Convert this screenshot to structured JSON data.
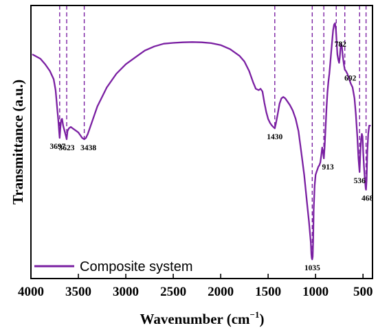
{
  "chart_data": {
    "type": "line",
    "title": "",
    "xlabel": "Wavenumber (cm",
    "xlabel_sup": "−1",
    "xlabel_close": ")",
    "ylabel": "Transmittance (a.u.)",
    "xlim": [
      4000,
      400
    ],
    "x_reversed": true,
    "ylim": [
      0,
      100
    ],
    "y_ticks_shown": false,
    "grid": false,
    "legend_position": "bottom-left",
    "x_ticks": [
      4000,
      3500,
      3000,
      2500,
      2000,
      1500,
      1000,
      500
    ],
    "x_tick_labels": [
      "4000",
      "3500",
      "3000",
      "2500",
      "2000",
      "1500",
      "1000",
      "500"
    ],
    "series": [
      {
        "name": "Composite system",
        "color": "#7a1fa2",
        "points": [
          [
            3980,
            82
          ],
          [
            3900,
            80.5
          ],
          [
            3850,
            78.5
          ],
          [
            3800,
            76
          ],
          [
            3760,
            73
          ],
          [
            3740,
            69
          ],
          [
            3725,
            63
          ],
          [
            3712,
            58
          ],
          [
            3703,
            54
          ],
          [
            3697,
            51.5
          ],
          [
            3690,
            55
          ],
          [
            3682,
            58
          ],
          [
            3672,
            58.5
          ],
          [
            3660,
            56
          ],
          [
            3645,
            54
          ],
          [
            3630,
            52
          ],
          [
            3623,
            51
          ],
          [
            3615,
            54
          ],
          [
            3600,
            55
          ],
          [
            3580,
            55.5
          ],
          [
            3560,
            55
          ],
          [
            3540,
            54.5
          ],
          [
            3520,
            54
          ],
          [
            3500,
            53.5
          ],
          [
            3480,
            52.5
          ],
          [
            3460,
            51.5
          ],
          [
            3438,
            51
          ],
          [
            3420,
            51.5
          ],
          [
            3400,
            53
          ],
          [
            3350,
            58
          ],
          [
            3300,
            63
          ],
          [
            3200,
            70
          ],
          [
            3100,
            75
          ],
          [
            3000,
            78.5
          ],
          [
            2900,
            81
          ],
          [
            2800,
            83.5
          ],
          [
            2700,
            85
          ],
          [
            2600,
            86
          ],
          [
            2500,
            86.3
          ],
          [
            2400,
            86.5
          ],
          [
            2300,
            86.6
          ],
          [
            2200,
            86.5
          ],
          [
            2100,
            86.2
          ],
          [
            2000,
            85.5
          ],
          [
            1900,
            84
          ],
          [
            1800,
            81.5
          ],
          [
            1750,
            79.5
          ],
          [
            1700,
            76
          ],
          [
            1660,
            72
          ],
          [
            1630,
            69.5
          ],
          [
            1600,
            69
          ],
          [
            1580,
            69.5
          ],
          [
            1560,
            68.5
          ],
          [
            1540,
            64.5
          ],
          [
            1520,
            61
          ],
          [
            1500,
            58.5
          ],
          [
            1480,
            57
          ],
          [
            1460,
            56
          ],
          [
            1445,
            55.5
          ],
          [
            1430,
            55
          ],
          [
            1420,
            56.5
          ],
          [
            1400,
            60
          ],
          [
            1380,
            64
          ],
          [
            1360,
            66
          ],
          [
            1340,
            66.5
          ],
          [
            1320,
            66
          ],
          [
            1300,
            65
          ],
          [
            1270,
            63.5
          ],
          [
            1240,
            61.5
          ],
          [
            1210,
            58.5
          ],
          [
            1180,
            54
          ],
          [
            1150,
            46
          ],
          [
            1120,
            38
          ],
          [
            1100,
            31
          ],
          [
            1085,
            26
          ],
          [
            1070,
            21
          ],
          [
            1060,
            17
          ],
          [
            1050,
            13
          ],
          [
            1045,
            9
          ],
          [
            1040,
            7.5
          ],
          [
            1035,
            7
          ],
          [
            1030,
            8
          ],
          [
            1025,
            14
          ],
          [
            1020,
            25
          ],
          [
            1010,
            34
          ],
          [
            1000,
            38
          ],
          [
            990,
            39
          ],
          [
            980,
            40
          ],
          [
            970,
            41
          ],
          [
            960,
            41.5
          ],
          [
            950,
            42.5
          ],
          [
            940,
            45
          ],
          [
            930,
            48
          ],
          [
            920,
            46
          ],
          [
            913,
            44
          ],
          [
            905,
            48
          ],
          [
            895,
            55
          ],
          [
            885,
            62
          ],
          [
            875,
            68
          ],
          [
            865,
            72
          ],
          [
            855,
            75
          ],
          [
            845,
            79
          ],
          [
            835,
            83
          ],
          [
            825,
            87
          ],
          [
            815,
            91
          ],
          [
            805,
            93
          ],
          [
            795,
            93.5
          ],
          [
            785,
            91
          ],
          [
            782,
            89
          ],
          [
            775,
            85
          ],
          [
            770,
            82
          ],
          [
            760,
            80
          ],
          [
            752,
            79
          ],
          [
            745,
            81
          ],
          [
            738,
            84
          ],
          [
            730,
            86
          ],
          [
            722,
            85
          ],
          [
            715,
            82
          ],
          [
            708,
            80
          ],
          [
            700,
            78
          ],
          [
            692,
            76.5
          ],
          [
            680,
            76
          ],
          [
            665,
            75
          ],
          [
            650,
            73.5
          ],
          [
            630,
            71.5
          ],
          [
            610,
            70
          ],
          [
            590,
            66
          ],
          [
            575,
            60
          ],
          [
            560,
            52
          ],
          [
            548,
            44
          ],
          [
            540,
            40.5
          ],
          [
            536,
            39
          ],
          [
            530,
            45
          ],
          [
            520,
            51
          ],
          [
            512,
            53
          ],
          [
            505,
            52
          ],
          [
            498,
            46
          ],
          [
            490,
            41
          ],
          [
            480,
            36
          ],
          [
            472,
            33
          ],
          [
            468,
            32.5
          ],
          [
            462,
            36
          ],
          [
            455,
            46
          ],
          [
            445,
            53
          ],
          [
            435,
            56
          ],
          [
            425,
            56
          ]
        ]
      }
    ],
    "annotations": [
      {
        "label": "3697",
        "x": 3697,
        "y": 51.5
      },
      {
        "label": "3623",
        "x": 3623,
        "y": 51
      },
      {
        "label": "3438",
        "x": 3438,
        "y": 51
      },
      {
        "label": "1430",
        "x": 1430,
        "y": 55
      },
      {
        "label": "1035",
        "x": 1035,
        "y": 7
      },
      {
        "label": "913",
        "x": 913,
        "y": 44
      },
      {
        "label": "782",
        "x": 782,
        "y": 89
      },
      {
        "label": "692",
        "x": 692,
        "y": 76.5
      },
      {
        "label": "536",
        "x": 536,
        "y": 39
      },
      {
        "label": "468",
        "x": 468,
        "y": 32.5
      }
    ]
  }
}
